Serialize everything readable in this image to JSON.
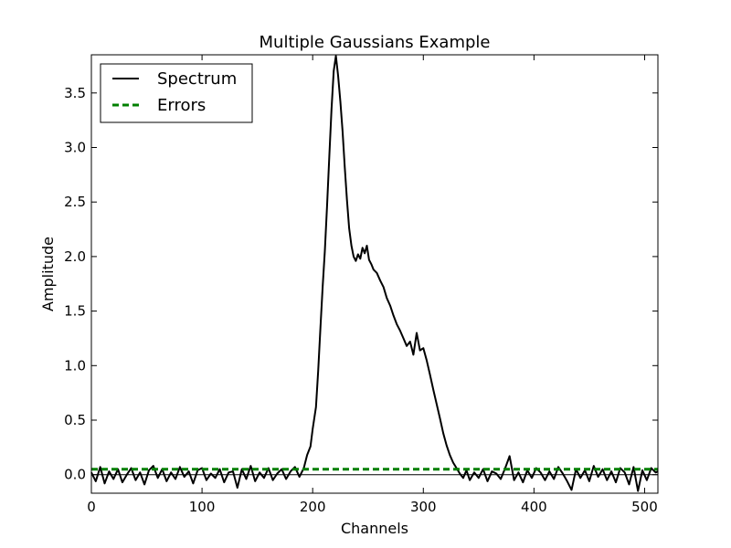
{
  "chart_data": {
    "type": "line",
    "title": "Multiple Gaussians Example",
    "xlabel": "Channels",
    "ylabel": "Amplitude",
    "xlim": [
      0,
      512
    ],
    "ylim": [
      -0.17,
      3.85
    ],
    "xticks": [
      0,
      100,
      200,
      300,
      400,
      500
    ],
    "xtick_labels": [
      "0",
      "100",
      "200",
      "300",
      "400",
      "500"
    ],
    "yticks": [
      0.0,
      0.5,
      1.0,
      1.5,
      2.0,
      2.5,
      3.0,
      3.5
    ],
    "ytick_labels": [
      "0.0",
      "0.5",
      "1.0",
      "1.5",
      "2.0",
      "2.5",
      "3.0",
      "3.5"
    ],
    "grid": false,
    "legend_position": "top-left",
    "zero_line": 0.0,
    "series": [
      {
        "name": "Spectrum",
        "color": "#000000",
        "style": "solid",
        "x": [
          0,
          4,
          8,
          12,
          16,
          20,
          24,
          28,
          32,
          36,
          40,
          44,
          48,
          52,
          56,
          60,
          64,
          68,
          72,
          76,
          80,
          84,
          88,
          92,
          96,
          100,
          104,
          108,
          112,
          116,
          120,
          124,
          128,
          132,
          136,
          140,
          144,
          148,
          152,
          156,
          160,
          164,
          168,
          172,
          176,
          180,
          184,
          188,
          192,
          195,
          198,
          200,
          203,
          205,
          207,
          209,
          211,
          213,
          215,
          217,
          219,
          221,
          223,
          225,
          227,
          229,
          231,
          233,
          235,
          237,
          239,
          241,
          243,
          245,
          247,
          249,
          251,
          253,
          255,
          258,
          261,
          264,
          267,
          270,
          273,
          276,
          279,
          282,
          285,
          288,
          291,
          294,
          297,
          300,
          303,
          306,
          309,
          312,
          315,
          318,
          321,
          324,
          327,
          330,
          333,
          336,
          339,
          342,
          346,
          350,
          354,
          358,
          362,
          366,
          370,
          374,
          378,
          382,
          386,
          390,
          394,
          398,
          402,
          406,
          410,
          414,
          418,
          422,
          426,
          430,
          434,
          438,
          442,
          446,
          450,
          454,
          458,
          462,
          466,
          470,
          474,
          478,
          482,
          486,
          490,
          494,
          498,
          502,
          506,
          510,
          512
        ],
        "y": [
          0.02,
          -0.06,
          0.07,
          -0.08,
          0.03,
          -0.04,
          0.05,
          -0.07,
          0.0,
          0.06,
          -0.05,
          0.02,
          -0.09,
          0.04,
          0.08,
          -0.03,
          0.05,
          -0.06,
          0.02,
          -0.04,
          0.07,
          -0.02,
          0.03,
          -0.08,
          0.04,
          0.06,
          -0.05,
          0.01,
          -0.03,
          0.05,
          -0.07,
          0.02,
          0.03,
          -0.12,
          0.05,
          -0.04,
          0.08,
          -0.06,
          0.02,
          -0.03,
          0.06,
          -0.05,
          0.01,
          0.05,
          -0.04,
          0.03,
          0.07,
          -0.02,
          0.06,
          0.18,
          0.26,
          0.42,
          0.62,
          0.95,
          1.35,
          1.72,
          2.05,
          2.46,
          2.92,
          3.35,
          3.7,
          3.84,
          3.66,
          3.42,
          3.15,
          2.82,
          2.52,
          2.26,
          2.1,
          2.0,
          1.96,
          2.02,
          1.98,
          2.08,
          2.03,
          2.1,
          1.97,
          1.93,
          1.88,
          1.85,
          1.78,
          1.72,
          1.62,
          1.55,
          1.46,
          1.38,
          1.32,
          1.25,
          1.18,
          1.22,
          1.1,
          1.3,
          1.14,
          1.16,
          1.05,
          0.92,
          0.78,
          0.65,
          0.52,
          0.38,
          0.27,
          0.18,
          0.11,
          0.06,
          0.01,
          -0.03,
          0.04,
          -0.05,
          0.02,
          -0.03,
          0.05,
          -0.06,
          0.03,
          0.01,
          -0.04,
          0.06,
          0.17,
          -0.05,
          0.02,
          -0.07,
          0.04,
          -0.03,
          0.06,
          0.02,
          -0.05,
          0.03,
          -0.04,
          0.07,
          0.01,
          -0.06,
          -0.14,
          0.05,
          -0.03,
          0.04,
          -0.06,
          0.08,
          -0.02,
          0.05,
          -0.05,
          0.03,
          -0.07,
          0.06,
          0.02,
          -0.09,
          0.07,
          -0.15,
          0.04,
          -0.05,
          0.06,
          0.02,
          0.03
        ]
      },
      {
        "name": "Errors",
        "color": "#007f00",
        "style": "dashed",
        "x": [
          0,
          512
        ],
        "y": [
          0.05,
          0.05
        ]
      }
    ]
  }
}
